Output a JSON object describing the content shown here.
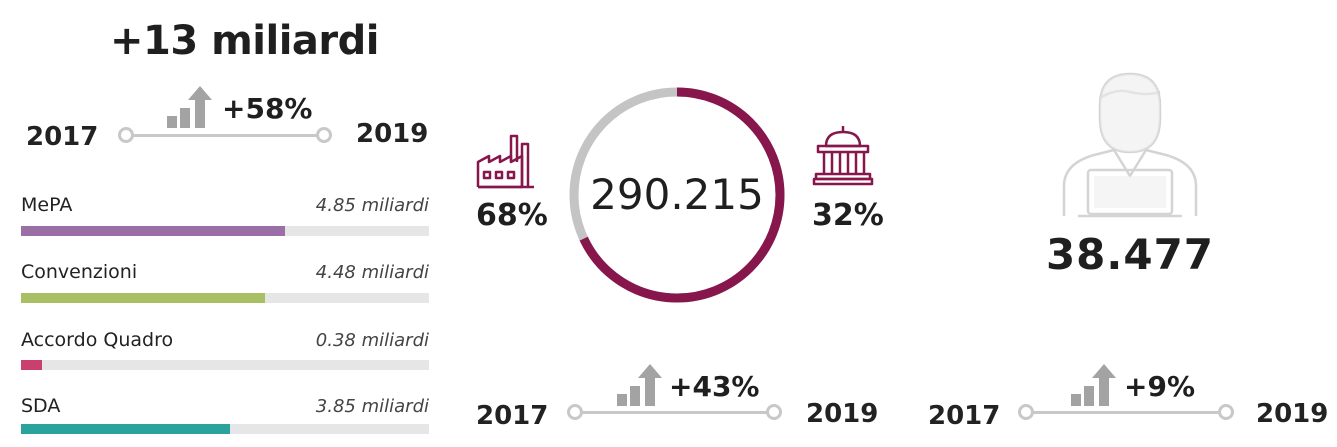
{
  "spend": {
    "title": "+13 miliardi",
    "change": "+58%",
    "year_start": "2017",
    "year_end": "2019",
    "bars": [
      {
        "label": "MePA",
        "value_text": "4.85 miliardi",
        "value": 4.85,
        "color": "#9b6fa6"
      },
      {
        "label": "Convenzioni",
        "value_text": "4.48 miliardi",
        "value": 4.48,
        "color": "#a9bf63"
      },
      {
        "label": "Accordo Quadro",
        "value_text": "0.38 miliardi",
        "value": 0.38,
        "color": "#c94070"
      },
      {
        "label": "SDA",
        "value_text": "3.85 miliardi",
        "value": 3.85,
        "color": "#2aa39e"
      }
    ]
  },
  "suppliers": {
    "total": "290.215",
    "companies_pct": "68%",
    "public_pct": "32%",
    "companies_share": 0.68,
    "ring_color": "#86164b",
    "ring_rest_color": "#c4c4c4",
    "change": "+43%",
    "year_start": "2017",
    "year_end": "2019"
  },
  "users": {
    "total": "38.477",
    "change": "+9%",
    "year_start": "2017",
    "year_end": "2019"
  },
  "icons": {
    "growth": "bar-growth-arrow-icon",
    "factory": "factory-icon",
    "public": "public-building-icon",
    "user": "user-laptop-icon"
  }
}
